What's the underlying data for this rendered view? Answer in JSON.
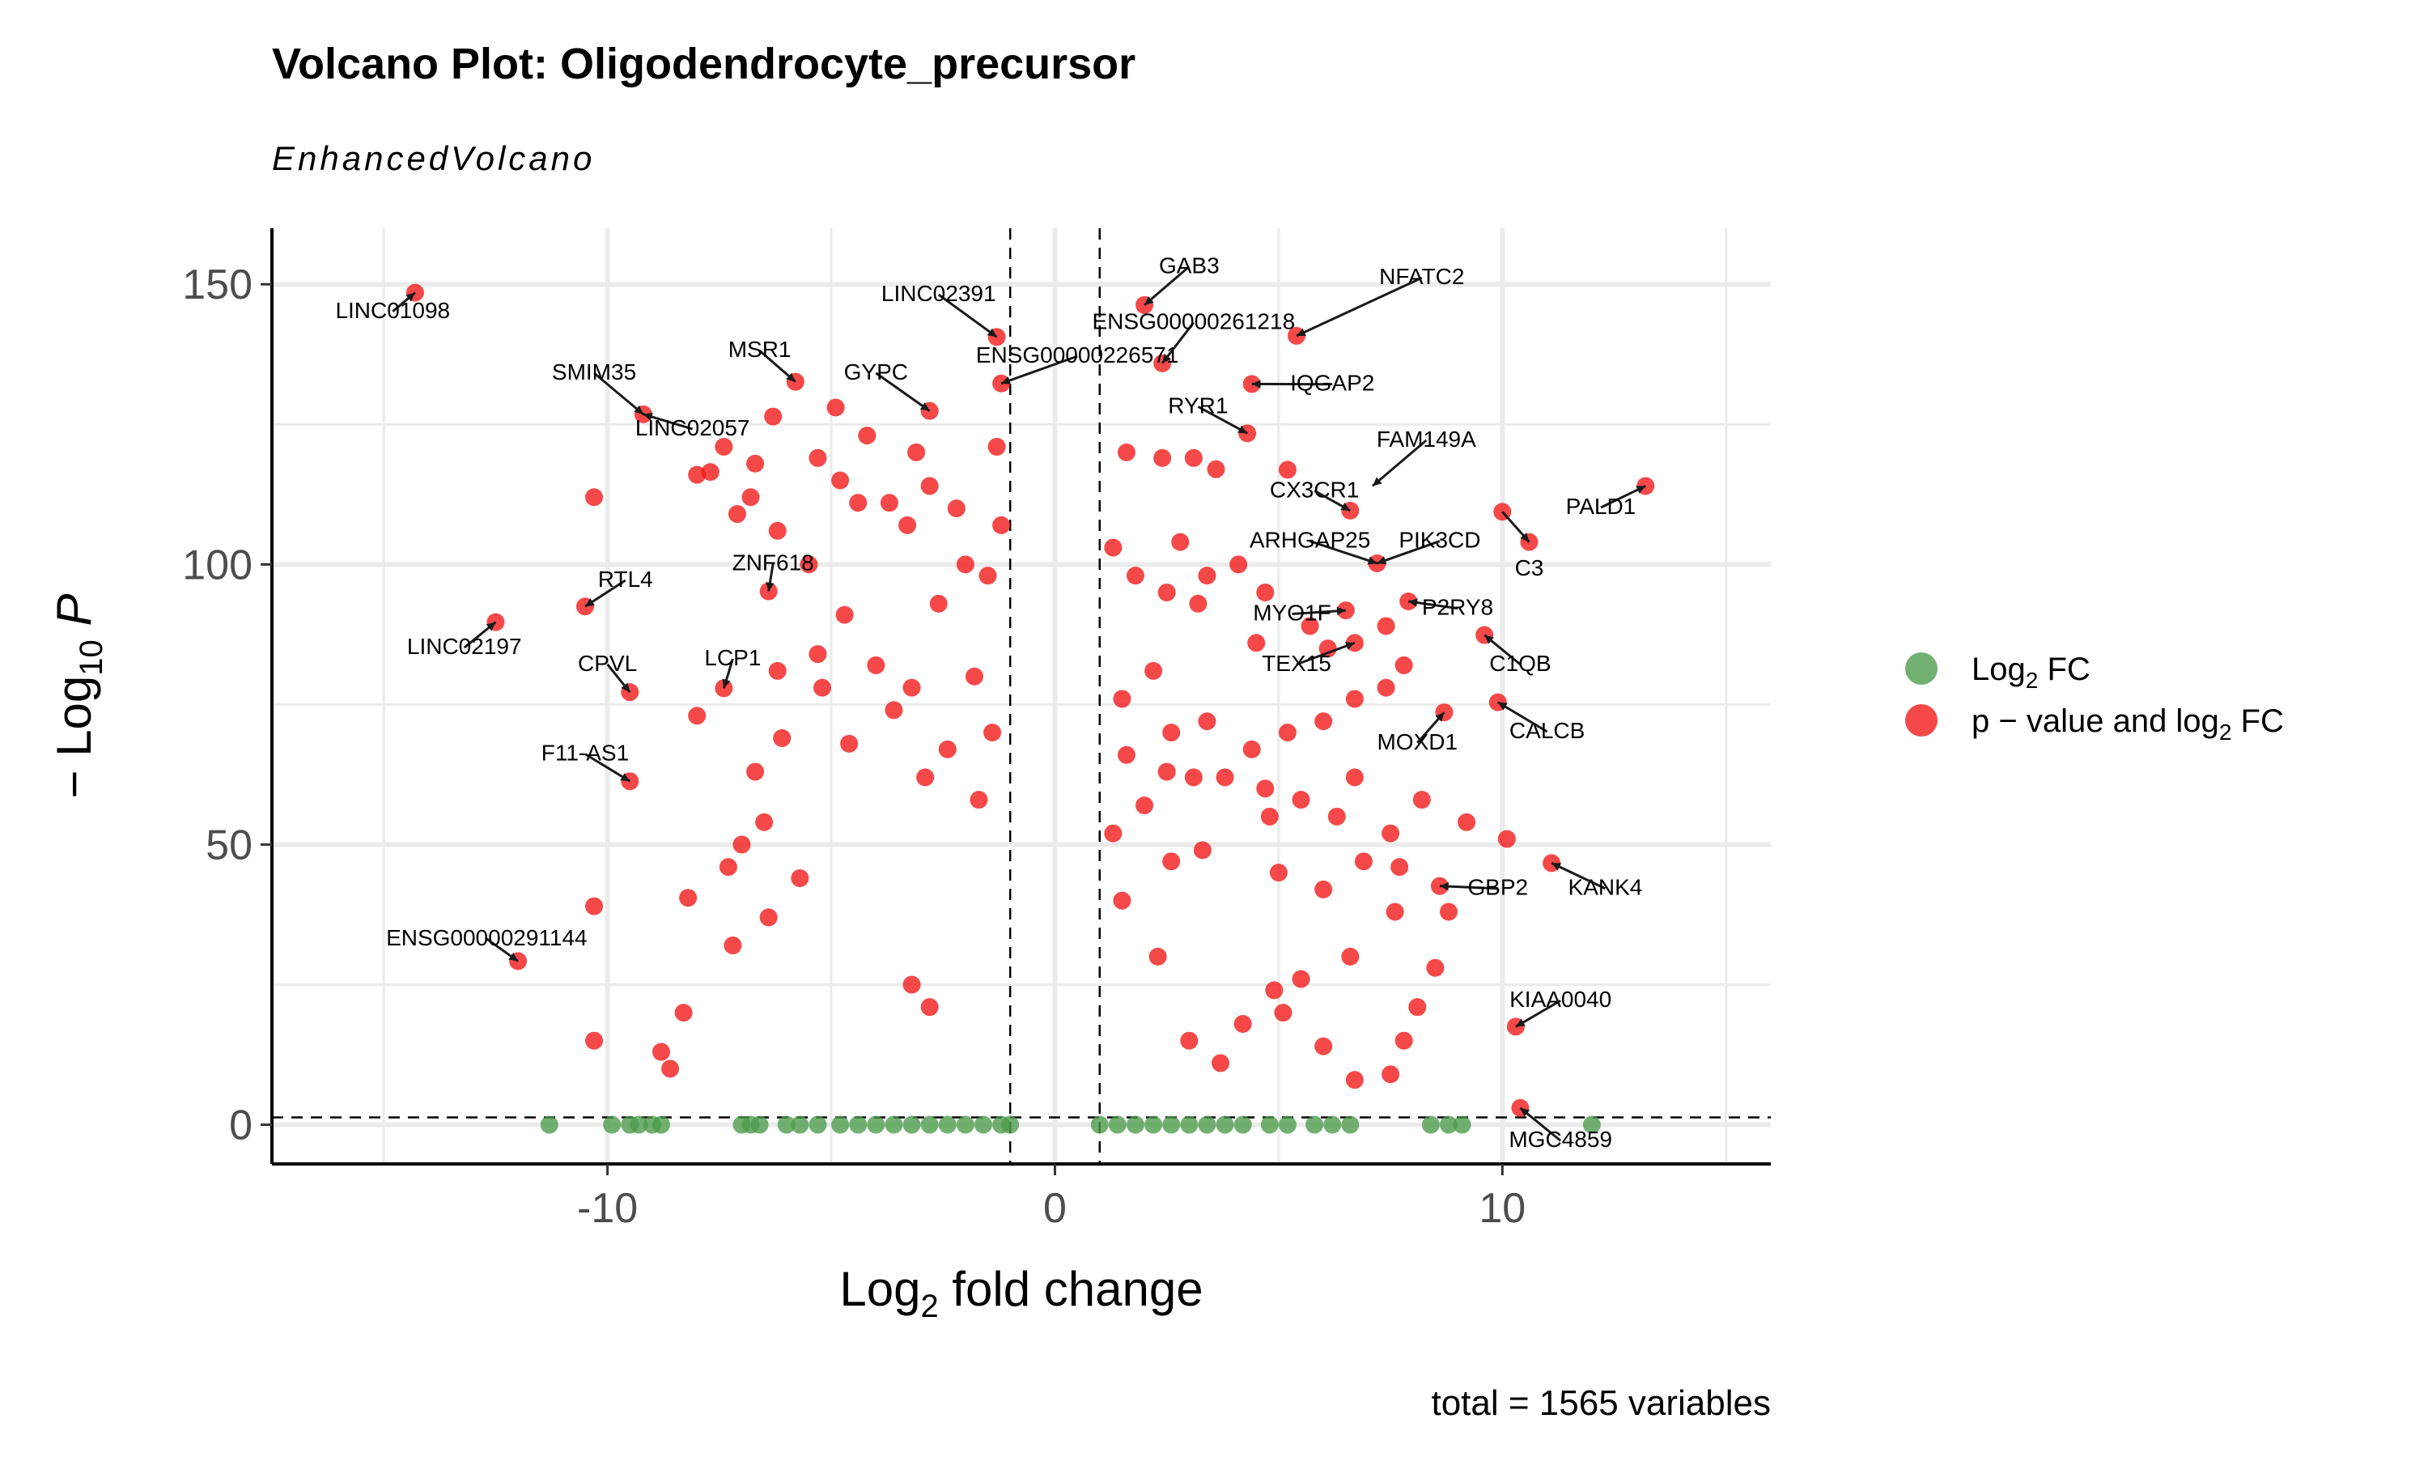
{
  "chart_data": {
    "type": "scatter",
    "title": "Volcano Plot: Oligodendrocyte_precursor",
    "subtitle": "EnhancedVolcano",
    "xlabel": {
      "main": "Log",
      "sub": "2",
      "rest": " fold change"
    },
    "ylabel": {
      "pre": "− Log",
      "sub": "10",
      "post": " P"
    },
    "caption": "total = 1565 variables",
    "xlim": [
      -17.5,
      16
    ],
    "ylim": [
      -7,
      160
    ],
    "x_ticks": [
      -10,
      0,
      10
    ],
    "x_tick_labels": [
      "-10",
      "0",
      "10"
    ],
    "y_ticks": [
      0,
      50,
      100,
      150
    ],
    "y_tick_labels": [
      "0",
      "50",
      "100",
      "150"
    ],
    "minor_x_ticks": [
      -15,
      -5,
      5,
      15
    ],
    "minor_y_ticks": [
      25,
      75,
      125
    ],
    "fc_cutoff": [
      -1,
      1
    ],
    "p_cutoff_line": 1.3,
    "grid": true,
    "legend_position": "right",
    "colors": {
      "ns_fc": "#4a9a4a",
      "sig": "#f21515",
      "grid": "#ebebeb",
      "axis": "#000000"
    },
    "legend": [
      {
        "key": "fc",
        "label": "Log",
        "sub": "2",
        "rest": " FC",
        "color": "#4a9a4a"
      },
      {
        "key": "sig",
        "label": "p − value and log",
        "sub": "2",
        "rest": " FC",
        "color": "#f21515"
      }
    ],
    "series": [
      {
        "key": "sig",
        "points": [
          [
            -14.3,
            148.5
          ],
          [
            -12.5,
            89.7
          ],
          [
            -10.5,
            92.5
          ],
          [
            -9.5,
            61.3
          ],
          [
            -12.0,
            29.2
          ],
          [
            -9.5,
            77.2
          ],
          [
            -7.4,
            77.9
          ],
          [
            -6.4,
            95.2
          ],
          [
            -9.2,
            126.8
          ],
          [
            -6.3,
            126.4
          ],
          [
            -5.8,
            132.6
          ],
          [
            -2.8,
            127.4
          ],
          [
            -1.3,
            140.6
          ],
          [
            -1.2,
            132.3
          ],
          [
            -10.3,
            112.0
          ],
          [
            -10.3,
            39.0
          ],
          [
            -10.3,
            15.0
          ],
          [
            -8.6,
            10.0
          ],
          [
            -8.8,
            13.0
          ],
          [
            -8.3,
            20.0
          ],
          [
            -8.0,
            73.0
          ],
          [
            -8.2,
            40.5
          ],
          [
            -8.0,
            116.0
          ],
          [
            -7.7,
            116.5
          ],
          [
            -7.4,
            121.0
          ],
          [
            -7.1,
            109.0
          ],
          [
            -6.7,
            63.0
          ],
          [
            -7.0,
            50.0
          ],
          [
            -7.2,
            32.0
          ],
          [
            -6.8,
            112.0
          ],
          [
            -6.7,
            118.0
          ],
          [
            -6.2,
            106.0
          ],
          [
            -6.2,
            81.0
          ],
          [
            -5.5,
            100.0
          ],
          [
            -5.3,
            119.0
          ],
          [
            -4.9,
            128.0
          ],
          [
            -4.2,
            123.0
          ],
          [
            -4.8,
            115.0
          ],
          [
            -4.4,
            111.0
          ],
          [
            -3.7,
            111.0
          ],
          [
            -3.3,
            107.0
          ],
          [
            -3.1,
            120.0
          ],
          [
            -2.8,
            114.0
          ],
          [
            -2.2,
            110.0
          ],
          [
            -2.0,
            100.0
          ],
          [
            -1.3,
            121.0
          ],
          [
            -1.2,
            107.0
          ],
          [
            -1.5,
            98.0
          ],
          [
            -2.6,
            93.0
          ],
          [
            -4.7,
            91.0
          ],
          [
            -5.3,
            84.0
          ],
          [
            -4.0,
            82.0
          ],
          [
            -3.2,
            78.0
          ],
          [
            -1.8,
            80.0
          ],
          [
            -1.4,
            70.0
          ],
          [
            -2.4,
            67.0
          ],
          [
            -3.6,
            74.0
          ],
          [
            -5.2,
            78.0
          ],
          [
            -6.1,
            69.0
          ],
          [
            -4.6,
            68.0
          ],
          [
            -2.9,
            62.0
          ],
          [
            -1.7,
            58.0
          ],
          [
            -5.7,
            44.0
          ],
          [
            -6.4,
            37.0
          ],
          [
            -7.3,
            46.0
          ],
          [
            -6.5,
            54.0
          ],
          [
            -2.8,
            21.0
          ],
          [
            -3.2,
            25.0
          ],
          [
            2.0,
            146.3
          ],
          [
            5.4,
            140.8
          ],
          [
            2.4,
            135.9
          ],
          [
            4.4,
            132.2
          ],
          [
            4.3,
            123.4
          ],
          [
            5.2,
            116.9
          ],
          [
            6.6,
            109.6
          ],
          [
            7.2,
            100.2
          ],
          [
            7.9,
            93.4
          ],
          [
            6.5,
            91.8
          ],
          [
            9.6,
            87.4
          ],
          [
            6.7,
            86.0
          ],
          [
            8.7,
            73.6
          ],
          [
            9.9,
            75.4
          ],
          [
            10.0,
            109.4
          ],
          [
            10.6,
            104.0
          ],
          [
            13.2,
            114.0
          ],
          [
            11.1,
            46.7
          ],
          [
            8.6,
            42.6
          ],
          [
            10.3,
            17.5
          ],
          [
            10.4,
            3.0
          ],
          [
            1.3,
            103.0
          ],
          [
            1.6,
            120.0
          ],
          [
            2.4,
            119.0
          ],
          [
            3.1,
            119.0
          ],
          [
            3.6,
            117.0
          ],
          [
            1.8,
            98.0
          ],
          [
            2.5,
            95.0
          ],
          [
            2.8,
            104.0
          ],
          [
            3.4,
            98.0
          ],
          [
            4.1,
            100.0
          ],
          [
            4.7,
            95.0
          ],
          [
            5.7,
            89.0
          ],
          [
            6.1,
            85.0
          ],
          [
            7.4,
            89.0
          ],
          [
            7.8,
            82.0
          ],
          [
            7.4,
            78.0
          ],
          [
            6.7,
            76.0
          ],
          [
            6.0,
            72.0
          ],
          [
            5.2,
            70.0
          ],
          [
            4.4,
            67.0
          ],
          [
            3.4,
            72.0
          ],
          [
            2.2,
            81.0
          ],
          [
            1.5,
            76.0
          ],
          [
            1.6,
            66.0
          ],
          [
            2.5,
            63.0
          ],
          [
            3.8,
            62.0
          ],
          [
            4.7,
            60.0
          ],
          [
            5.5,
            58.0
          ],
          [
            6.3,
            55.0
          ],
          [
            7.5,
            52.0
          ],
          [
            8.2,
            58.0
          ],
          [
            9.2,
            54.0
          ],
          [
            10.1,
            51.0
          ],
          [
            8.8,
            38.0
          ],
          [
            7.6,
            38.0
          ],
          [
            6.6,
            30.0
          ],
          [
            5.5,
            26.0
          ],
          [
            4.9,
            24.0
          ],
          [
            8.1,
            21.0
          ],
          [
            7.8,
            15.0
          ],
          [
            7.5,
            9.0
          ],
          [
            6.7,
            8.0
          ],
          [
            6.0,
            14.0
          ],
          [
            5.1,
            20.0
          ],
          [
            4.2,
            18.0
          ],
          [
            3.7,
            11.0
          ],
          [
            3.0,
            15.0
          ],
          [
            2.3,
            30.0
          ],
          [
            1.5,
            40.0
          ],
          [
            1.3,
            52.0
          ],
          [
            2.0,
            57.0
          ],
          [
            3.3,
            49.0
          ],
          [
            5.0,
            45.0
          ],
          [
            6.0,
            42.0
          ],
          [
            6.9,
            47.0
          ],
          [
            7.7,
            46.0
          ],
          [
            8.5,
            28.0
          ],
          [
            2.6,
            47.0
          ],
          [
            3.1,
            62.0
          ],
          [
            4.8,
            55.0
          ],
          [
            6.7,
            62.0
          ],
          [
            2.6,
            70.0
          ],
          [
            3.2,
            93.0
          ],
          [
            4.5,
            86.0
          ]
        ]
      },
      {
        "key": "fc",
        "points": [
          [
            -11.3,
            0.0
          ],
          [
            -9.9,
            0.0
          ],
          [
            -9.5,
            0.0
          ],
          [
            -9.3,
            0.0
          ],
          [
            -9.0,
            0.0
          ],
          [
            -8.8,
            0.0
          ],
          [
            -7.0,
            0.0
          ],
          [
            -6.8,
            0.0
          ],
          [
            -6.6,
            0.0
          ],
          [
            -6.0,
            0.0
          ],
          [
            -5.7,
            0.0
          ],
          [
            -5.3,
            0.0
          ],
          [
            -4.8,
            0.0
          ],
          [
            -4.4,
            0.0
          ],
          [
            -4.0,
            0.0
          ],
          [
            -3.6,
            0.0
          ],
          [
            -3.2,
            0.0
          ],
          [
            -2.8,
            0.0
          ],
          [
            -2.4,
            0.0
          ],
          [
            -2.0,
            0.0
          ],
          [
            -1.6,
            0.0
          ],
          [
            -1.2,
            0.0
          ],
          [
            -1.0,
            0.0
          ],
          [
            1.0,
            0.0
          ],
          [
            1.4,
            0.0
          ],
          [
            1.8,
            0.0
          ],
          [
            2.2,
            0.0
          ],
          [
            2.6,
            0.0
          ],
          [
            3.0,
            0.0
          ],
          [
            3.4,
            0.0
          ],
          [
            3.8,
            0.0
          ],
          [
            4.2,
            0.0
          ],
          [
            4.8,
            0.0
          ],
          [
            5.2,
            0.0
          ],
          [
            5.8,
            0.0
          ],
          [
            6.2,
            0.0
          ],
          [
            6.6,
            0.0
          ],
          [
            8.4,
            0.0
          ],
          [
            8.8,
            0.0
          ],
          [
            9.1,
            0.0
          ],
          [
            12.0,
            0.0
          ]
        ]
      }
    ],
    "labels": [
      {
        "text": "LINC01098",
        "x": -14.3,
        "y": 148.5,
        "lx": -14.8,
        "ly": 144.0,
        "anchor": "middle"
      },
      {
        "text": "SMIM35",
        "x": -9.2,
        "y": 126.8,
        "lx": -10.3,
        "ly": 133.0,
        "anchor": "middle"
      },
      {
        "text": "LINC02057",
        "x": -9.2,
        "y": 126.8,
        "lx": -8.1,
        "ly": 123.0,
        "anchor": "middle"
      },
      {
        "text": "MSR1",
        "x": -5.8,
        "y": 132.6,
        "lx": -6.6,
        "ly": 137.0,
        "anchor": "middle"
      },
      {
        "text": "GYPC",
        "x": -2.8,
        "y": 127.4,
        "lx": -4.0,
        "ly": 133.0,
        "anchor": "middle"
      },
      {
        "text": "LINC02391",
        "x": -1.3,
        "y": 140.6,
        "lx": -2.6,
        "ly": 147.0,
        "anchor": "middle"
      },
      {
        "text": "ENSG00000226571",
        "x": -1.2,
        "y": 132.3,
        "lx": 0.5,
        "ly": 136.0,
        "anchor": "middle"
      },
      {
        "text": "GAB3",
        "x": 2.0,
        "y": 146.3,
        "lx": 3.0,
        "ly": 152.0,
        "anchor": "middle"
      },
      {
        "text": "NFATC2",
        "x": 5.4,
        "y": 140.8,
        "lx": 8.2,
        "ly": 150.0,
        "anchor": "middle",
        "arrow": true
      },
      {
        "text": "ENSG00000261218",
        "x": 2.4,
        "y": 135.9,
        "lx": 3.1,
        "ly": 142.0,
        "anchor": "middle",
        "arrow": true
      },
      {
        "text": "IQGAP2",
        "x": 4.4,
        "y": 132.2,
        "lx": 6.2,
        "ly": 131.0,
        "anchor": "middle"
      },
      {
        "text": "RYR1",
        "x": 4.3,
        "y": 123.4,
        "lx": 3.2,
        "ly": 127.0,
        "anchor": "middle"
      },
      {
        "text": "FAM149A",
        "x": 7.1,
        "y": 114.0,
        "lx": 8.3,
        "ly": 121.0,
        "anchor": "middle",
        "arrow": true
      },
      {
        "text": "CX3CR1",
        "x": 6.6,
        "y": 109.6,
        "lx": 5.8,
        "ly": 112.0,
        "anchor": "middle"
      },
      {
        "text": "ARHGAP25",
        "x": 7.2,
        "y": 100.2,
        "lx": 5.7,
        "ly": 103.0,
        "anchor": "middle"
      },
      {
        "text": "PIK3CD",
        "x": 7.2,
        "y": 100.2,
        "lx": 8.6,
        "ly": 103.0,
        "anchor": "middle"
      },
      {
        "text": "PALD1",
        "x": 13.2,
        "y": 114.0,
        "lx": 12.2,
        "ly": 109.0,
        "anchor": "middle"
      },
      {
        "text": "C3",
        "x": 10.6,
        "y": 104.0,
        "lx": 10.6,
        "ly": 98.0,
        "anchor": "middle",
        "from": [
          10.0,
          109.4
        ]
      },
      {
        "text": "MYO1F",
        "x": 6.5,
        "y": 91.8,
        "lx": 5.3,
        "ly": 90.0,
        "anchor": "middle"
      },
      {
        "text": "P2RY8",
        "x": 7.9,
        "y": 93.4,
        "lx": 9.0,
        "ly": 91.0,
        "anchor": "middle"
      },
      {
        "text": "C1QB",
        "x": 9.6,
        "y": 87.4,
        "lx": 10.4,
        "ly": 81.0,
        "anchor": "middle"
      },
      {
        "text": "TEX15",
        "x": 6.7,
        "y": 86.0,
        "lx": 5.4,
        "ly": 81.0,
        "anchor": "middle"
      },
      {
        "text": "CALCB",
        "x": 9.9,
        "y": 75.4,
        "lx": 11.0,
        "ly": 69.0,
        "anchor": "middle"
      },
      {
        "text": "MOXD1",
        "x": 8.7,
        "y": 73.6,
        "lx": 8.1,
        "ly": 67.0,
        "anchor": "middle"
      },
      {
        "text": "KANK4",
        "x": 11.1,
        "y": 46.7,
        "lx": 12.3,
        "ly": 41.0,
        "anchor": "middle"
      },
      {
        "text": "GBP2",
        "x": 8.6,
        "y": 42.6,
        "lx": 9.9,
        "ly": 41.0,
        "anchor": "middle"
      },
      {
        "text": "KIAA0040",
        "x": 10.3,
        "y": 17.5,
        "lx": 11.3,
        "ly": 21.0,
        "anchor": "middle"
      },
      {
        "text": "MGC4859",
        "x": 10.4,
        "y": 3.0,
        "lx": 11.3,
        "ly": -4.0,
        "anchor": "middle"
      },
      {
        "text": "RTL4",
        "x": -10.5,
        "y": 92.5,
        "lx": -9.6,
        "ly": 96.0,
        "anchor": "middle"
      },
      {
        "text": "ZNF618",
        "x": -6.4,
        "y": 95.2,
        "lx": -6.3,
        "ly": 99.0,
        "anchor": "middle"
      },
      {
        "text": "LINC02197",
        "x": -12.5,
        "y": 89.7,
        "lx": -13.2,
        "ly": 84.0,
        "anchor": "middle"
      },
      {
        "text": "CPVL",
        "x": -9.5,
        "y": 77.2,
        "lx": -10.0,
        "ly": 81.0,
        "anchor": "middle"
      },
      {
        "text": "LCP1",
        "x": -7.4,
        "y": 77.9,
        "lx": -7.2,
        "ly": 82.0,
        "anchor": "middle"
      },
      {
        "text": "F11-AS1",
        "x": -9.5,
        "y": 61.3,
        "lx": -10.5,
        "ly": 65.0,
        "anchor": "middle"
      },
      {
        "text": "ENSG00000291144",
        "x": -12.0,
        "y": 29.2,
        "lx": -12.7,
        "ly": 32.0,
        "anchor": "middle"
      }
    ]
  }
}
